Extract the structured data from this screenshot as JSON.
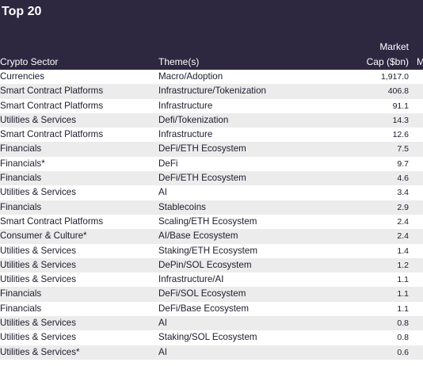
{
  "title": "Top 20",
  "headers": {
    "sector": "Crypto Sector",
    "theme": "Theme(s)",
    "cap_line1": "Market",
    "cap_line2": "Cap ($bn)",
    "extra": "M"
  },
  "rows": [
    {
      "sector": "Currencies",
      "theme": "Macro/Adoption",
      "cap": "1,917.0"
    },
    {
      "sector": "Smart Contract Platforms",
      "theme": "Infrastructure/Tokenization",
      "cap": "406.8"
    },
    {
      "sector": "Smart Contract Platforms",
      "theme": "Infrastructure",
      "cap": "91.1"
    },
    {
      "sector": "Utilities & Services",
      "theme": "Defi/Tokenization",
      "cap": "14.3"
    },
    {
      "sector": "Smart Contract Platforms",
      "theme": "Infrastructure",
      "cap": "12.6"
    },
    {
      "sector": "Financials",
      "theme": "DeFi/ETH Ecosystem",
      "cap": "7.5"
    },
    {
      "sector": "Financials*",
      "theme": "DeFi",
      "cap": "9.7"
    },
    {
      "sector": "Financials",
      "theme": "DeFi/ETH Ecosystem",
      "cap": "4.6"
    },
    {
      "sector": "Utilities & Services",
      "theme": "AI",
      "cap": "3.4"
    },
    {
      "sector": "Financials",
      "theme": "Stablecoins",
      "cap": "2.9"
    },
    {
      "sector": "Smart Contract Platforms",
      "theme": "Scaling/ETH Ecosystem",
      "cap": "2.4"
    },
    {
      "sector": "Consumer & Culture*",
      "theme": "AI/Base Ecosystem",
      "cap": "2.4"
    },
    {
      "sector": "Utilities & Services",
      "theme": "Staking/ETH Ecosystem",
      "cap": "1.4"
    },
    {
      "sector": "Utilities & Services",
      "theme": "DePin/SOL Ecosystem",
      "cap": "1.2"
    },
    {
      "sector": "Utilities & Services",
      "theme": "Infrastructure/AI",
      "cap": "1.1"
    },
    {
      "sector": "Financials",
      "theme": "DeFi/SOL Ecosystem",
      "cap": "1.1"
    },
    {
      "sector": "Financials",
      "theme": "DeFi/Base Ecosystem",
      "cap": "1.1"
    },
    {
      "sector": "Utilities & Services",
      "theme": "AI",
      "cap": "0.8"
    },
    {
      "sector": "Utilities & Services",
      "theme": "Staking/SOL Ecosystem",
      "cap": "0.8"
    },
    {
      "sector": "Utilities & Services*",
      "theme": "AI",
      "cap": "0.6"
    }
  ],
  "colors": {
    "header_bg": "#2d2740",
    "alt_row_bg": "#ececec"
  }
}
